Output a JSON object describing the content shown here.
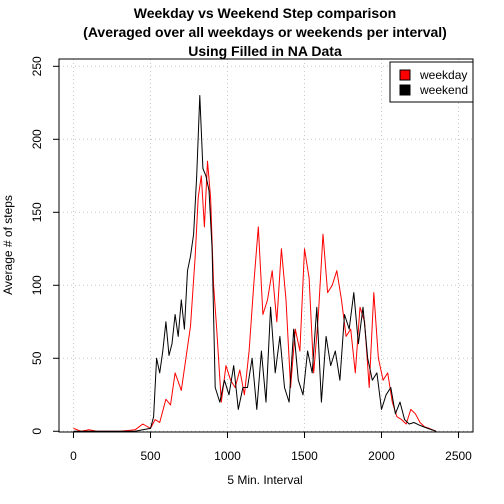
{
  "chart_data": {
    "type": "line",
    "title_lines": [
      "Weekday vs Weekend Step comparison",
      "(Averaged over all weekdays or weekends per interval)",
      "Using Filled in NA Data"
    ],
    "xlabel": "5 Min. Interval",
    "ylabel": "Average # of steps",
    "xlim": [
      0,
      2500
    ],
    "ylim": [
      0,
      250
    ],
    "xticks": [
      0,
      500,
      1000,
      1500,
      2000,
      2500
    ],
    "yticks": [
      0,
      50,
      100,
      150,
      200,
      250
    ],
    "grid": true,
    "legend_position": "top-right",
    "series": [
      {
        "name": "weekday",
        "color": "#ff0000",
        "x": [
          0,
          50,
          100,
          150,
          200,
          300,
          400,
          450,
          500,
          530,
          560,
          600,
          630,
          660,
          700,
          730,
          760,
          790,
          810,
          830,
          850,
          870,
          890,
          910,
          930,
          960,
          990,
          1020,
          1050,
          1080,
          1110,
          1140,
          1170,
          1200,
          1230,
          1260,
          1290,
          1320,
          1350,
          1380,
          1410,
          1440,
          1470,
          1500,
          1530,
          1560,
          1590,
          1620,
          1650,
          1680,
          1710,
          1740,
          1770,
          1800,
          1830,
          1860,
          1890,
          1920,
          1950,
          1980,
          2010,
          2040,
          2070,
          2100,
          2130,
          2160,
          2190,
          2220,
          2250,
          2280,
          2310,
          2355
        ],
        "y": [
          2,
          0,
          1,
          0,
          0,
          0,
          1,
          5,
          2,
          8,
          6,
          22,
          18,
          40,
          28,
          50,
          72,
          120,
          160,
          175,
          140,
          185,
          160,
          100,
          70,
          20,
          45,
          35,
          30,
          42,
          25,
          55,
          100,
          140,
          80,
          90,
          110,
          75,
          125,
          90,
          30,
          70,
          55,
          125,
          105,
          40,
          80,
          135,
          95,
          100,
          110,
          90,
          65,
          70,
          40,
          85,
          75,
          30,
          95,
          50,
          35,
          40,
          20,
          10,
          8,
          5,
          15,
          12,
          6,
          3,
          2,
          0
        ]
      },
      {
        "name": "weekend",
        "color": "#000000",
        "x": [
          0,
          50,
          100,
          150,
          200,
          300,
          400,
          450,
          500,
          520,
          540,
          560,
          580,
          600,
          620,
          640,
          660,
          680,
          700,
          720,
          740,
          760,
          780,
          800,
          820,
          840,
          860,
          880,
          900,
          920,
          950,
          980,
          1010,
          1040,
          1070,
          1100,
          1130,
          1160,
          1190,
          1220,
          1250,
          1280,
          1310,
          1340,
          1370,
          1400,
          1430,
          1460,
          1490,
          1520,
          1550,
          1580,
          1610,
          1640,
          1670,
          1700,
          1730,
          1760,
          1790,
          1820,
          1850,
          1880,
          1910,
          1940,
          1970,
          2000,
          2030,
          2060,
          2090,
          2120,
          2150,
          2180,
          2210,
          2250,
          2300,
          2355
        ],
        "y": [
          0,
          0,
          0,
          0,
          0,
          0,
          0,
          1,
          2,
          10,
          50,
          40,
          55,
          75,
          52,
          60,
          80,
          65,
          90,
          70,
          110,
          120,
          135,
          175,
          230,
          180,
          175,
          165,
          125,
          30,
          20,
          35,
          25,
          45,
          15,
          30,
          30,
          50,
          15,
          55,
          20,
          85,
          40,
          65,
          30,
          20,
          70,
          35,
          25,
          55,
          40,
          85,
          20,
          65,
          45,
          55,
          35,
          80,
          70,
          95,
          60,
          85,
          50,
          35,
          40,
          15,
          25,
          30,
          12,
          20,
          8,
          5,
          6,
          4,
          2,
          0
        ]
      }
    ]
  }
}
